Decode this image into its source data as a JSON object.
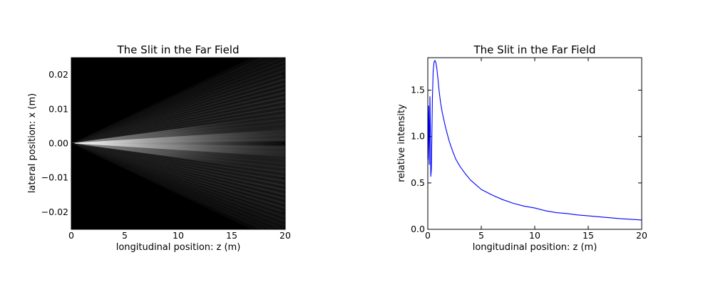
{
  "chart_data": [
    {
      "type": "heatmap",
      "title": "The Slit in the Far Field",
      "xlabel": "longitudinal position: z (m)",
      "ylabel": "lateral position: x (m)",
      "xlim": [
        0,
        20
      ],
      "ylim": [
        -0.025,
        0.025
      ],
      "xticks": [
        "0",
        "5",
        "10",
        "15",
        "20"
      ],
      "yticks": [
        "0.02",
        "0.01",
        "0.00",
        "−0.01",
        "−0.02"
      ],
      "colormap": "gray",
      "grid": false,
      "colors": {
        "background": "#000000",
        "beam": "#ffffff"
      }
    },
    {
      "type": "line",
      "title": "The Slit in the Far Field",
      "xlabel": "longitudinal position: z (m)",
      "ylabel": "relative intensity",
      "xlim": [
        0,
        20
      ],
      "ylim": [
        0,
        1.85
      ],
      "xticks": [
        "0",
        "5",
        "10",
        "15",
        "20"
      ],
      "yticks": [
        "0.0",
        "0.5",
        "1.0",
        "1.5"
      ],
      "grid": false,
      "series": [
        {
          "color": "#0000ff",
          "x": [
            0.02,
            0.08,
            0.14,
            0.2,
            0.24,
            0.28,
            0.33,
            0.38,
            0.43,
            0.5,
            0.58,
            0.66,
            0.75,
            0.85,
            0.95,
            1.05,
            1.2,
            1.35,
            1.5,
            1.7,
            2.0,
            2.3,
            2.6,
            3.0,
            3.5,
            4.0,
            4.5,
            5.0,
            6.0,
            7.0,
            8.0,
            9.0,
            10.0,
            11.0,
            12.0,
            13.0,
            14.0,
            15.0,
            16.0,
            17.0,
            18.0,
            19.0,
            20.0
          ],
          "y": [
            0.75,
            1.33,
            0.7,
            1.43,
            1.1,
            0.57,
            0.64,
            1.0,
            1.4,
            1.7,
            1.8,
            1.82,
            1.8,
            1.73,
            1.62,
            1.5,
            1.36,
            1.26,
            1.18,
            1.08,
            0.95,
            0.85,
            0.76,
            0.68,
            0.6,
            0.53,
            0.48,
            0.43,
            0.37,
            0.32,
            0.28,
            0.25,
            0.23,
            0.2,
            0.18,
            0.17,
            0.155,
            0.145,
            0.135,
            0.125,
            0.115,
            0.108,
            0.1
          ]
        }
      ]
    }
  ]
}
